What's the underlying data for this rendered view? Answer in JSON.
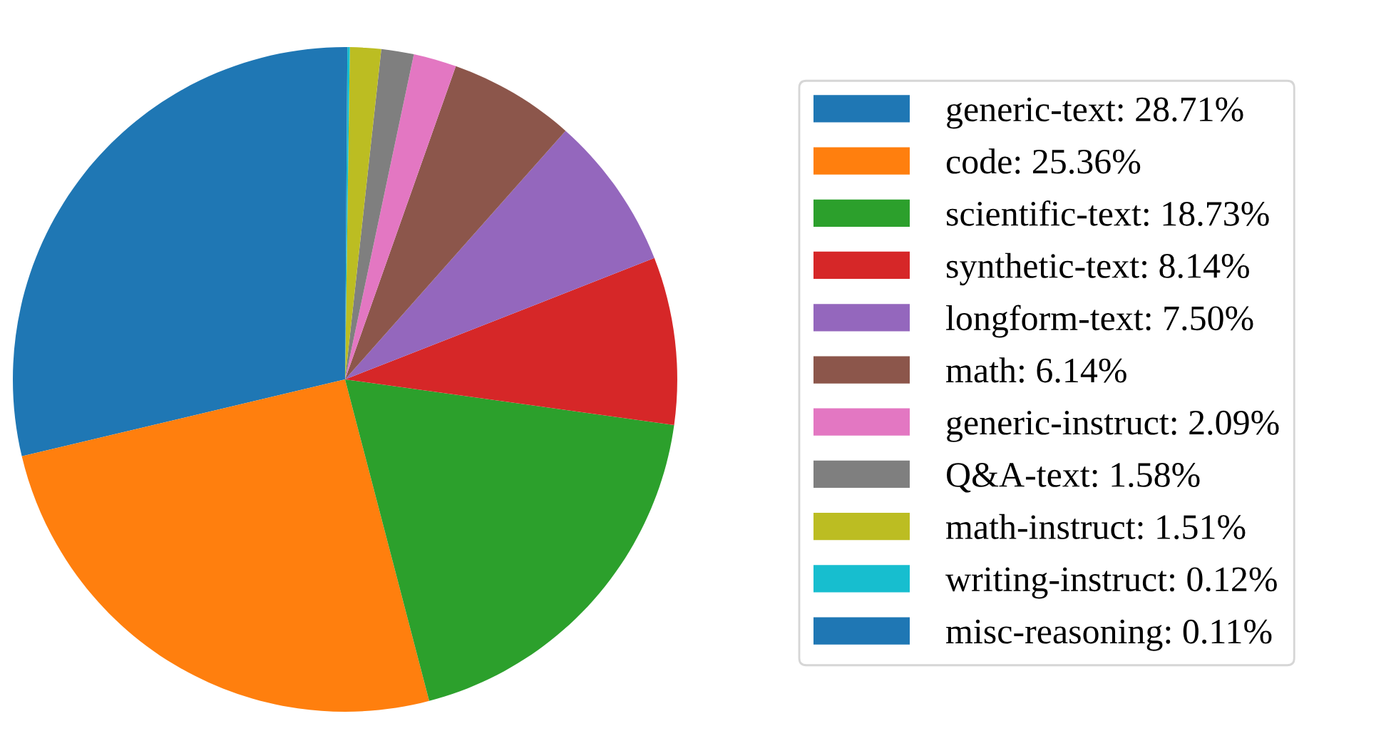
{
  "chart_data": {
    "type": "pie",
    "categories": [
      "generic-text: 28.71%",
      "code: 25.36%",
      "scientific-text: 18.73%",
      "synthetic-text: 8.14%",
      "longform-text: 7.50%",
      "math: 6.14%",
      "generic-instruct: 2.09%",
      "Q&A-text: 1.58%",
      "math-instruct: 1.51%",
      "writing-instruct: 0.12%",
      "misc-reasoning: 0.11%"
    ],
    "values": [
      28.71,
      25.36,
      18.73,
      8.14,
      7.5,
      6.14,
      2.09,
      1.58,
      1.51,
      0.12,
      0.11
    ],
    "colors": [
      "#1f77b4",
      "#ff7f0e",
      "#2ca02c",
      "#d62728",
      "#9467bd",
      "#8c564b",
      "#e377c2",
      "#7f7f7f",
      "#bcbd22",
      "#17becf",
      "#1f77b4"
    ],
    "legend": "right"
  }
}
